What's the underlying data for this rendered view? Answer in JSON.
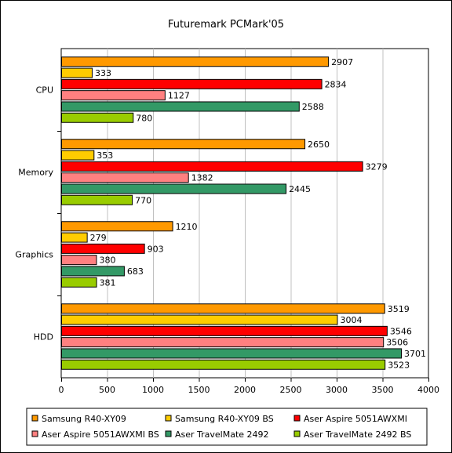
{
  "chart_data": {
    "type": "bar",
    "orientation": "horizontal",
    "title": "Futuremark PCMark'05",
    "xlabel": "",
    "ylabel": "",
    "xlim": [
      0,
      4000
    ],
    "xticks": [
      0,
      500,
      1000,
      1500,
      2000,
      2500,
      3000,
      3500,
      4000
    ],
    "grid": "vertical",
    "legend_position": "bottom",
    "categories": [
      "CPU",
      "Memory",
      "Graphics",
      "HDD"
    ],
    "series": [
      {
        "name": "Samsung R40-XY09",
        "color": "#ff9900",
        "values": [
          2907,
          2650,
          1210,
          3519
        ]
      },
      {
        "name": "Samsung R40-XY09 BS",
        "color": "#ffcc00",
        "values": [
          333,
          353,
          279,
          3004
        ]
      },
      {
        "name": "Aser Aspire 5051AWXMI",
        "color": "#ff0000",
        "values": [
          2834,
          3279,
          903,
          3546
        ]
      },
      {
        "name": "Aser Aspire 5051AWXMI BS",
        "color": "#ff8080",
        "values": [
          1127,
          1382,
          380,
          3506
        ]
      },
      {
        "name": "Aser TravelMate 2492",
        "color": "#339966",
        "values": [
          2588,
          2445,
          683,
          3701
        ]
      },
      {
        "name": "Aser TravelMate 2492 BS",
        "color": "#99cc00",
        "values": [
          780,
          770,
          381,
          3523
        ]
      }
    ]
  }
}
